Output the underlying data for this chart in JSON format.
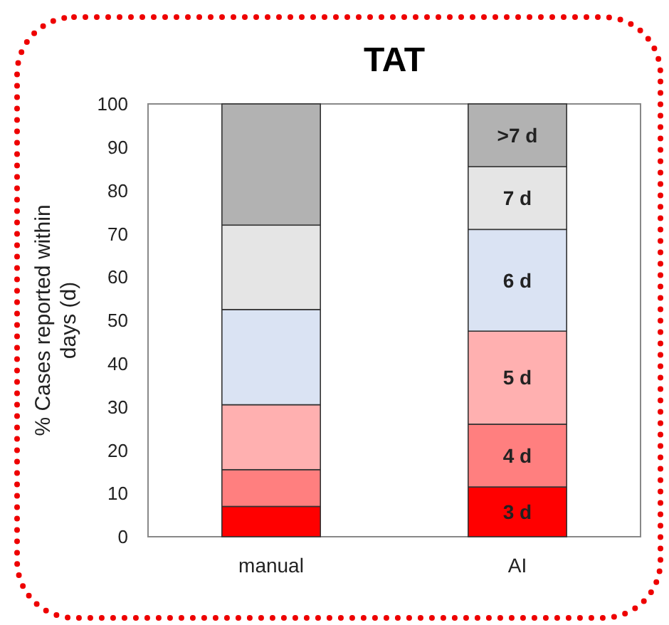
{
  "chart_data": {
    "type": "bar",
    "title": "TAT",
    "ylabel": "% Cases reported within days (d)",
    "categories": [
      "manual",
      "AI"
    ],
    "stacked": true,
    "ylim": [
      0,
      100
    ],
    "yticks": [
      0,
      10,
      20,
      30,
      40,
      50,
      60,
      70,
      80,
      90,
      100
    ],
    "grid": false,
    "series": [
      {
        "name": "3 d",
        "color": "#ff0000",
        "values": [
          7,
          11.5
        ]
      },
      {
        "name": "4 d",
        "color": "#ff7f7f",
        "values": [
          8.5,
          14.5
        ]
      },
      {
        "name": "5 d",
        "color": "#ffb0b0",
        "values": [
          15,
          21.5
        ]
      },
      {
        "name": "6 d",
        "color": "#dae3f3",
        "values": [
          22,
          23.5
        ]
      },
      {
        "name": "7 d",
        "color": "#e5e5e5",
        "values": [
          19.5,
          14.5
        ]
      },
      {
        "name": ">7 d",
        "color": "#b2b2b2",
        "values": [
          28,
          14.5
        ]
      }
    ]
  }
}
